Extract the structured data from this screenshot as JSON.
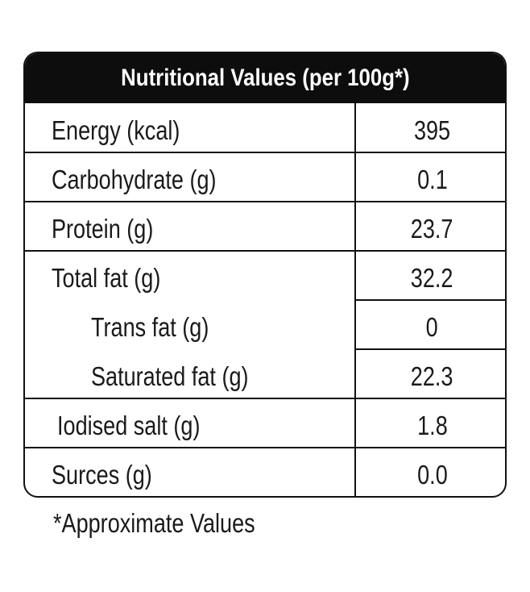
{
  "table": {
    "header": "Nutritional Values (per 100g*)",
    "rows": [
      {
        "label": "Energy (kcal)",
        "value": "395"
      },
      {
        "label": "Carbohydrate (g)",
        "value": "0.1"
      },
      {
        "label": "Protein (g)",
        "value": "23.7"
      },
      {
        "label": "Total fat (g)",
        "value": "32.2"
      },
      {
        "label": "Trans fat (g)",
        "value": "0"
      },
      {
        "label": "Saturated fat (g)",
        "value": "22.3"
      },
      {
        "label": "Iodised salt (g)",
        "value": "1.8"
      },
      {
        "label": "Surces (g)",
        "value": "0.0"
      }
    ]
  },
  "footnote": "*Approximate Values",
  "colors": {
    "header_background": "#0d0d0d",
    "header_text": "#ffffff",
    "border": "#111111",
    "text": "#1a1a1a"
  }
}
